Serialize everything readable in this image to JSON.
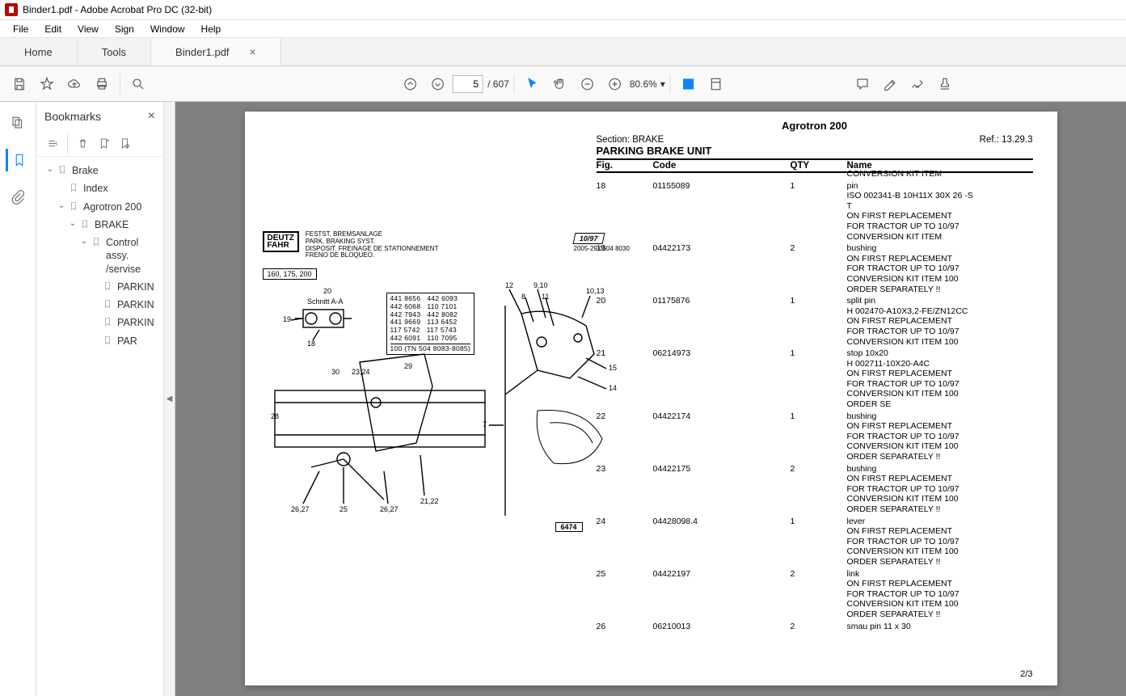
{
  "app": {
    "title": "Binder1.pdf - Adobe Acrobat Pro DC (32-bit)"
  },
  "menu": {
    "items": [
      "File",
      "Edit",
      "View",
      "Sign",
      "Window",
      "Help"
    ]
  },
  "tabs": {
    "home": "Home",
    "tools": "Tools",
    "doc": "Binder1.pdf"
  },
  "toolbar": {
    "page_current": "5",
    "page_total": "/ 607",
    "zoom": "80.6%"
  },
  "bookmarks": {
    "title": "Bookmarks",
    "tree": [
      {
        "level": 1,
        "toggle": "v",
        "label": "Brake",
        "folder": true
      },
      {
        "level": 2,
        "toggle": "",
        "label": "Index"
      },
      {
        "level": 2,
        "toggle": "v",
        "label": "Agrotron 200"
      },
      {
        "level": 3,
        "toggle": "v",
        "label": "BRAKE"
      },
      {
        "level": 4,
        "toggle": "v",
        "label": "Control assy. /servise"
      },
      {
        "level": 5,
        "toggle": "",
        "label": "PARKIN"
      },
      {
        "level": 5,
        "toggle": "",
        "label": "PARKIN"
      },
      {
        "level": 5,
        "toggle": "",
        "label": "PARKIN"
      },
      {
        "level": 5,
        "toggle": "",
        "label": "PAR"
      }
    ]
  },
  "document": {
    "model": "Agrotron 200",
    "section_label": "Section: BRAKE",
    "ref_label": "Ref.: 13.29.3",
    "title": "PARKING BRAKE UNIT",
    "columns": {
      "fig": "Fig.",
      "code": "Code",
      "qty": "QTY",
      "name": "Name"
    },
    "page_num": "2/3",
    "rows": [
      {
        "fig": "",
        "code": "",
        "qty": "",
        "name": "CONVERSION KIT ITEM"
      },
      {
        "fig": "18",
        "code": "01155089",
        "qty": "1",
        "name": "pin\nISO 002341-B 10H11X 30X 26 -S\nT\nON FIRST REPLACEMENT\nFOR TRACTOR UP TO 10/97\nCONVERSION KIT ITEM"
      },
      {
        "fig": "19",
        "code": "04422173",
        "qty": "2",
        "name": "bushing\nON FIRST REPLACEMENT\nFOR TRACTOR UP TO 10/97\nCONVERSION KIT ITEM 100\nORDER SEPARATELY !!"
      },
      {
        "fig": "20",
        "code": "01175876",
        "qty": "1",
        "name": "split pin\nH 002470-A10X3,2-FE/ZN12CC\nON FIRST REPLACEMENT\nFOR TRACTOR UP TO 10/97\nCONVERSION KIT ITEM 100"
      },
      {
        "fig": "21",
        "code": "06214973",
        "qty": "1",
        "name": "stop 10x20\nH 002711-10X20-A4C\nON FIRST REPLACEMENT\nFOR TRACTOR UP TO 10/97\nCONVERSION KIT ITEM 100\nORDER SE"
      },
      {
        "fig": "22",
        "code": "04422174",
        "qty": "1",
        "name": "bushing\nON FIRST REPLACEMENT\nFOR TRACTOR UP TO 10/97\nCONVERSION KIT ITEM 100\nORDER SEPARATELY !!"
      },
      {
        "fig": "23",
        "code": "04422175",
        "qty": "2",
        "name": "bushing\nON FIRST REPLACEMENT\nFOR TRACTOR UP TO 10/97\nCONVERSION KIT ITEM 100\nORDER SEPARATELY !!"
      },
      {
        "fig": "24",
        "code": "04428098.4",
        "qty": "1",
        "name": "lever\nON FIRST REPLACEMENT\nFOR TRACTOR UP TO 10/97\nCONVERSION KIT ITEM 100\nORDER SEPARATELY !!"
      },
      {
        "fig": "25",
        "code": "04422197",
        "qty": "2",
        "name": "link\nON FIRST REPLACEMENT\nFOR TRACTOR UP TO 10/97\nCONVERSION KIT ITEM 100\nORDER SEPARATELY !!"
      },
      {
        "fig": "26",
        "code": "06210013",
        "qty": "2",
        "name": "smau pin 11 x 30"
      }
    ],
    "diagram": {
      "logo_line1": "DEUTZ",
      "logo_line2": "FAHR",
      "captions": "FESTST. BREMSANLAGE\nPARK. BRAKING SYST.\nDISPOSIT. FREINAGE DE STATIONNEMENT\nFRENO DE BLOQUEO.",
      "box160": "160, 175, 200",
      "date_tag": "10/97",
      "date_line": "2005-29  0504 8030",
      "code_lines": "441 8656   442 6093\n442 6068   110 7101\n442 7943   442 8082\n441 9669   113 6452\n117 5742   117 5743\n442 6091   110 7095",
      "code_footer": "100 (TN 504 8083-8085)",
      "num_box": "6474",
      "callouts": [
        "20",
        "Schnitt A-A",
        "19",
        "18",
        "30",
        "23,24",
        "29",
        "28",
        "26,27",
        "25",
        "26,27",
        "21,22",
        "7",
        "12",
        "9,10",
        "8",
        "11",
        "10,13",
        "15",
        "14"
      ]
    }
  }
}
